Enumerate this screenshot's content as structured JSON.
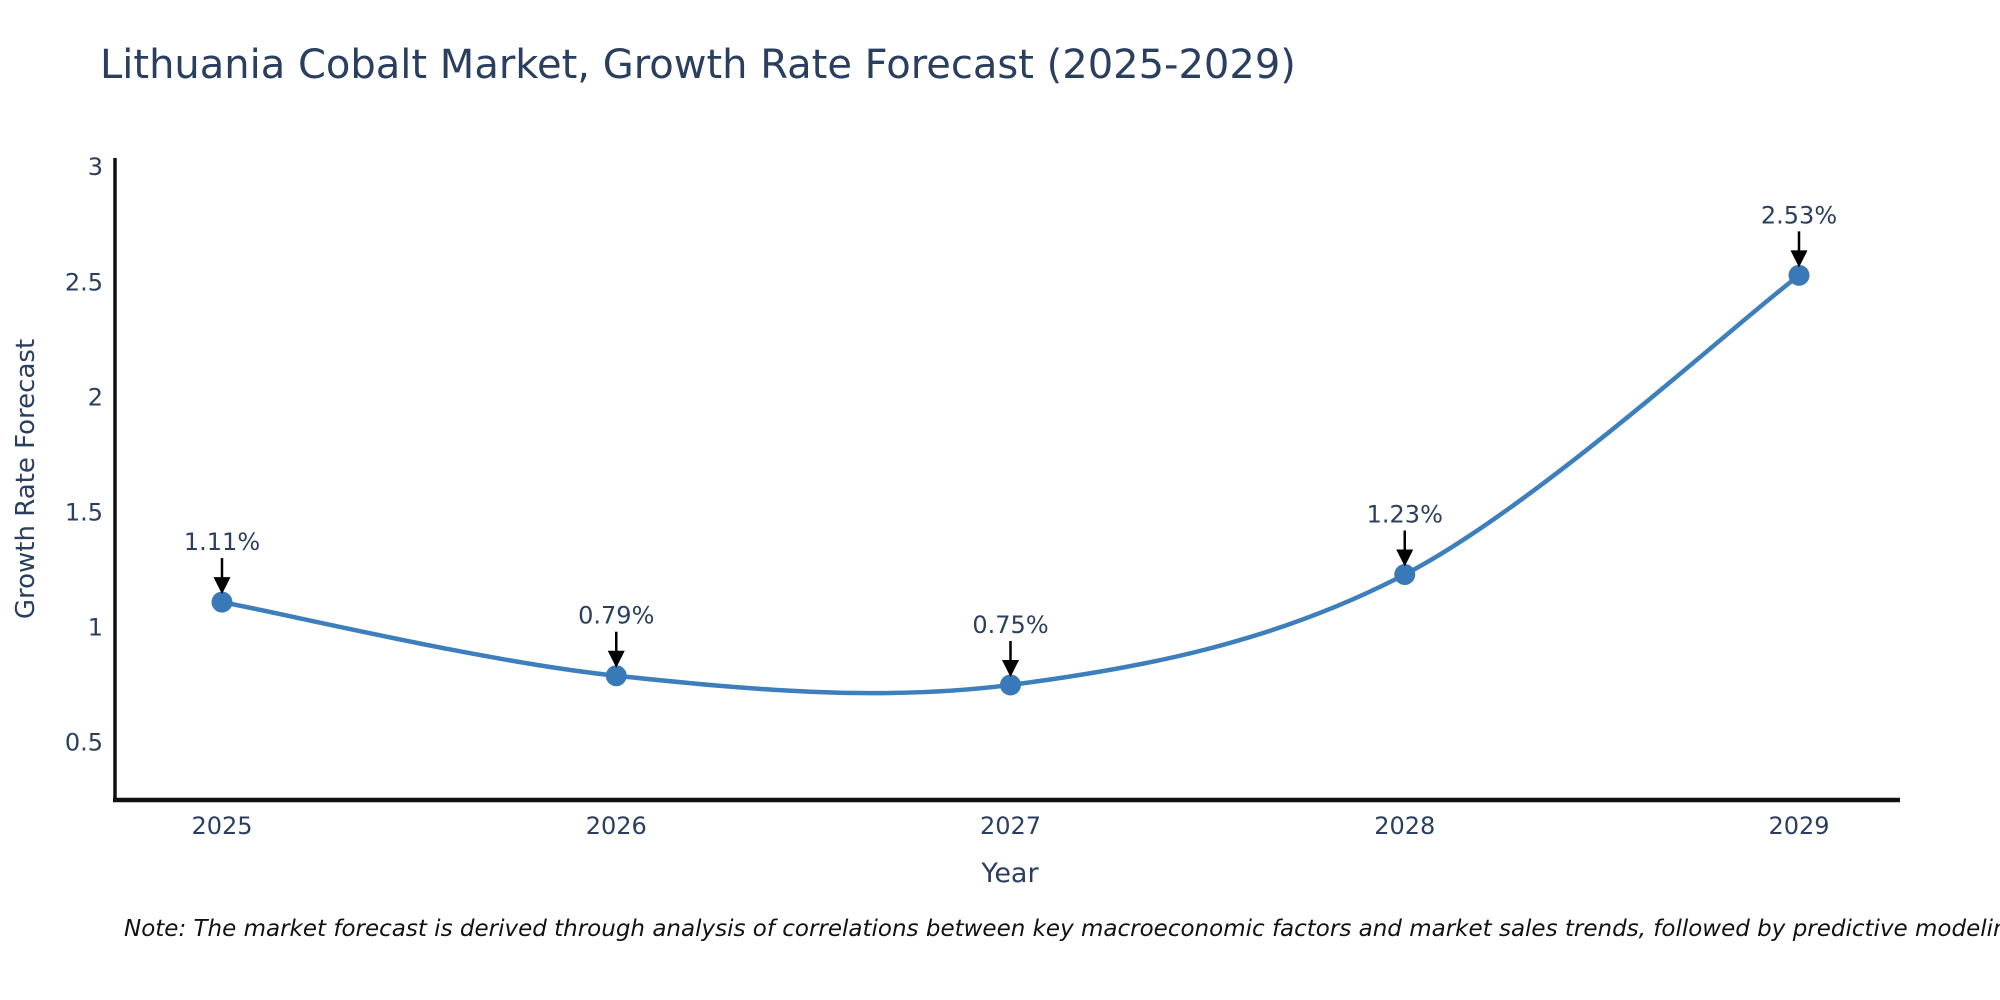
{
  "title": "Lithuania Cobalt Market, Growth Rate Forecast (2025-2029)",
  "note": "Note: The market forecast is derived through analysis of correlations between key macroeconomic factors and market sales trends, followed by predictive modeling to project future sales",
  "chart_data": {
    "type": "line",
    "title": "Lithuania Cobalt Market, Growth Rate Forecast (2025-2029)",
    "xlabel": "Year",
    "ylabel": "Growth Rate Forecast",
    "categories": [
      "2025",
      "2026",
      "2027",
      "2028",
      "2029"
    ],
    "series": [
      {
        "name": "Growth Rate Forecast",
        "values": [
          1.11,
          0.79,
          0.75,
          1.23,
          2.53
        ],
        "point_labels": [
          "1.11%",
          "0.79%",
          "0.75%",
          "1.23%",
          "2.53%"
        ]
      }
    ],
    "yticks": [
      0.5,
      1,
      1.5,
      2,
      2.5,
      3
    ],
    "ylim": [
      0.25,
      3.04
    ],
    "line_shape": "spline",
    "grid": false,
    "legend_position": "none",
    "annotation_style": "value labels with downward black arrows above each point",
    "colors": {
      "line": "#3d7ebd",
      "marker": "#3a79b8",
      "axis": "#111111",
      "tick_text": "#2a3f5f",
      "title_text": "#2a3f5f",
      "note_text": "#111111",
      "arrow": "#000000",
      "background": "#ffffff"
    }
  }
}
